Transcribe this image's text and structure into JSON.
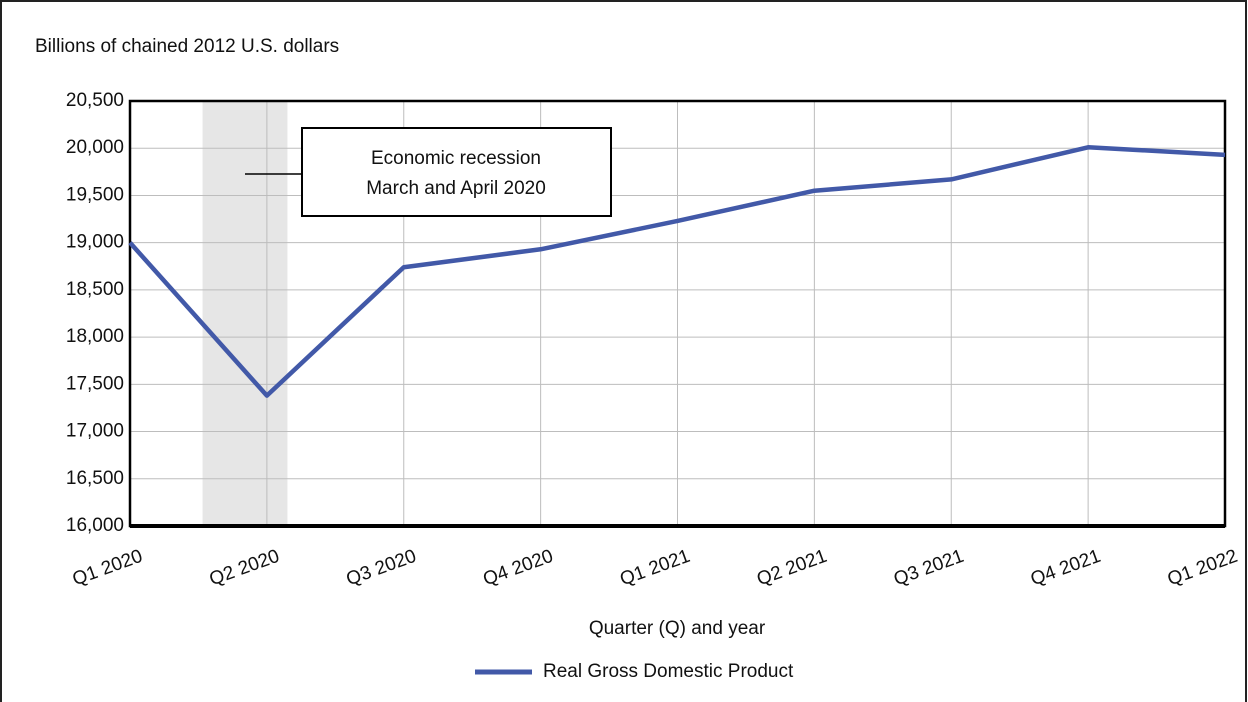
{
  "chart_data": {
    "type": "line",
    "y_axis_label": "Billions of chained 2012 U.S. dollars",
    "x_axis_label": "Quarter (Q) and year",
    "categories": [
      "Q1 2020",
      "Q2 2020",
      "Q3 2020",
      "Q4 2020",
      "Q1 2021",
      "Q2 2021",
      "Q3 2021",
      "Q4 2021",
      "Q1 2022"
    ],
    "series": [
      {
        "name": "Real Gross Domestic Product",
        "color": "#4259a8",
        "values": [
          19000,
          17380,
          18740,
          18930,
          19230,
          19550,
          19670,
          20010,
          19930
        ]
      }
    ],
    "ylim": [
      16000,
      20500
    ],
    "yticks": [
      {
        "value": 16000,
        "label": "16,000"
      },
      {
        "value": 16500,
        "label": "16,500"
      },
      {
        "value": 17000,
        "label": "17,000"
      },
      {
        "value": 17500,
        "label": "17,500"
      },
      {
        "value": 18000,
        "label": "18,000"
      },
      {
        "value": 18500,
        "label": "18,500"
      },
      {
        "value": 19000,
        "label": "19,000"
      },
      {
        "value": 19500,
        "label": "19,500"
      },
      {
        "value": 20000,
        "label": "20,000"
      },
      {
        "value": 20500,
        "label": "20,500"
      }
    ],
    "annotation": [
      "Economic recession",
      "March and April 2020"
    ],
    "grid": true
  }
}
